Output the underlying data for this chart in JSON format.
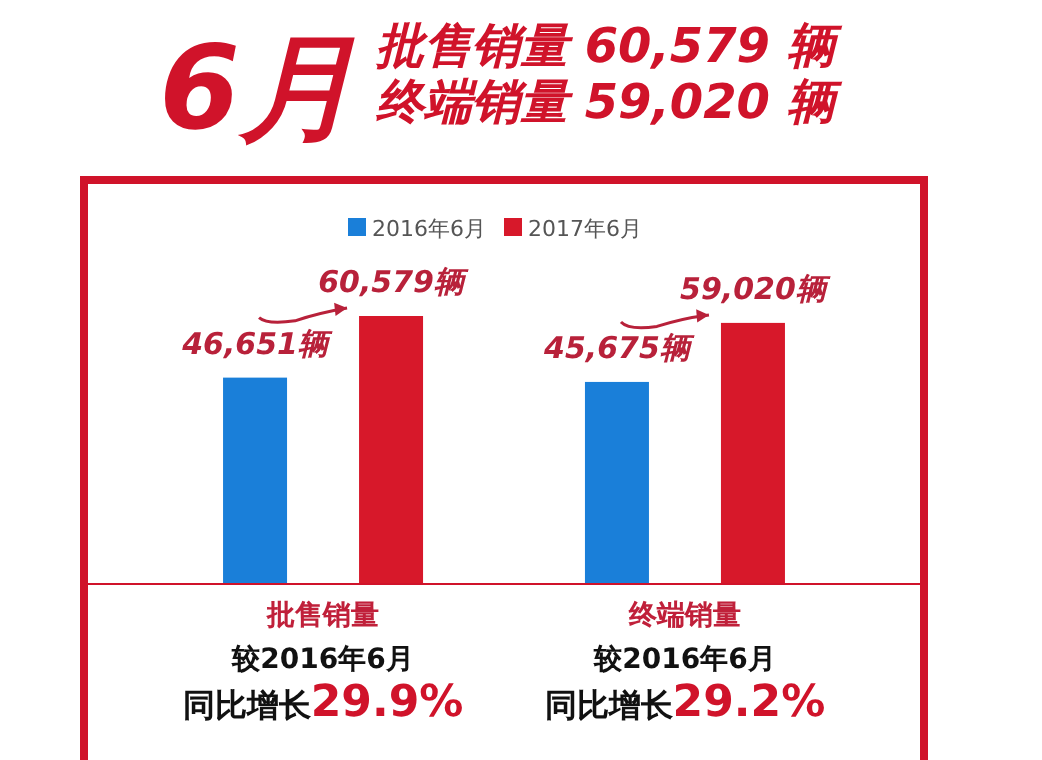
{
  "chart_data": {
    "type": "bar",
    "title": "6月",
    "subtitle": "批售销量 60,579 辆终端销量 59,020 辆",
    "categories": [
      "批售销量",
      "终端销量"
    ],
    "series": [
      {
        "name": "2016年6月",
        "color": "#1a7fd9",
        "values": [
          46651,
          45675
        ],
        "value_labels": [
          "46,651辆",
          "45,675辆"
        ]
      },
      {
        "name": "2017年6月",
        "color": "#d7182a",
        "values": [
          60579,
          59020
        ],
        "value_labels": [
          "60,579辆",
          "59,020辆"
        ]
      }
    ],
    "tick_labels": "x",
    "legend": "top",
    "annotations": [
      "较2016年6月",
      "同比增长29.9%",
      "较2016年6月",
      "同比增长29.2%"
    ]
  }
}
